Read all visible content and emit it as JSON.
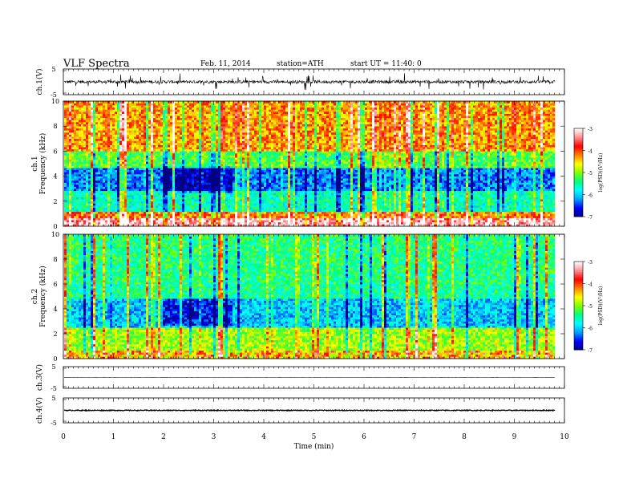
{
  "header": {
    "title": "VLF  Spectra",
    "date": "Feb. 11, 2014",
    "station": "station=ATH",
    "start_ut": "start  UT  =   11:40: 0"
  },
  "colors": {
    "colorbar": [
      "#000080",
      "#0000ff",
      "#00a0ff",
      "#00ffff",
      "#00ff80",
      "#80ff00",
      "#ffff00",
      "#ff8000",
      "#ff0000",
      "#ff9090",
      "#ffffff"
    ],
    "waveform": "#000000",
    "frame": "#000000"
  },
  "chart_data": [
    {
      "type": "line",
      "id": "ch1-waveform",
      "ylabel": "ch.1(V)",
      "ylim": [
        -5,
        5
      ],
      "yticks": [
        "5",
        "-5"
      ],
      "xlim": [
        0,
        10
      ],
      "description_level": "noisy trace around 0 V with frequent spikes",
      "baseline": 0,
      "amplitude": 1.2
    },
    {
      "type": "heatmap",
      "id": "ch1-spectrogram",
      "channel": "ch.1",
      "ylabel": "Frequency  (kHz)",
      "ylim": [
        0,
        10
      ],
      "yticks": [
        "0",
        "2",
        "4",
        "6",
        "8",
        "10"
      ],
      "xlim": [
        0,
        9.8
      ],
      "colorbar": {
        "label": "log(PSD)(V²/Hz)",
        "range": [
          -7,
          -3
        ],
        "ticks": [
          "-3",
          "-4",
          "-5",
          "-6",
          "-7"
        ]
      },
      "bands": [
        {
          "from_khz": 0,
          "to_khz": 0.6,
          "logpsd": -3.3
        },
        {
          "from_khz": 0.6,
          "to_khz": 1.2,
          "logpsd": -4.2
        },
        {
          "from_khz": 1.2,
          "to_khz": 2.8,
          "logpsd": -5.6
        },
        {
          "from_khz": 2.8,
          "to_khz": 4.6,
          "logpsd": -6.3
        },
        {
          "from_khz": 4.6,
          "to_khz": 6.0,
          "logpsd": -5.2
        },
        {
          "from_khz": 6.0,
          "to_khz": 10,
          "logpsd": -4.3
        }
      ]
    },
    {
      "type": "heatmap",
      "id": "ch2-spectrogram",
      "channel": "ch.2",
      "ylabel": "Frequency  (kHz)",
      "ylim": [
        0,
        10
      ],
      "yticks": [
        "0",
        "2",
        "4",
        "6",
        "8",
        "10"
      ],
      "xlim": [
        0,
        9.8
      ],
      "colorbar": {
        "label": "log(PSD)(V²/Hz)",
        "range": [
          -7,
          -3
        ],
        "ticks": [
          "-3",
          "-4",
          "-5",
          "-6",
          "-7"
        ]
      },
      "bands": [
        {
          "from_khz": 0,
          "to_khz": 0.6,
          "logpsd": -4.6
        },
        {
          "from_khz": 0.6,
          "to_khz": 2.5,
          "logpsd": -4.9
        },
        {
          "from_khz": 2.5,
          "to_khz": 4.8,
          "logpsd": -6.0
        },
        {
          "from_khz": 4.8,
          "to_khz": 6.0,
          "logpsd": -5.5
        },
        {
          "from_khz": 6.0,
          "to_khz": 10,
          "logpsd": -5.4
        }
      ]
    },
    {
      "type": "line",
      "id": "ch3-waveform",
      "ylabel": "ch.3(V)",
      "ylim": [
        -5,
        5
      ],
      "yticks": [
        "5",
        "-5"
      ],
      "xlim": [
        0,
        9.8
      ],
      "baseline": 0,
      "amplitude": 0.05
    },
    {
      "type": "line",
      "id": "ch4-waveform",
      "ylabel": "ch.4(V)",
      "ylim": [
        -5,
        5
      ],
      "yticks": [
        "5",
        "-5"
      ],
      "xlim": [
        0,
        9.8
      ],
      "baseline": 0,
      "amplitude": 0.35
    }
  ],
  "x_axis": {
    "label": "Time  (min)",
    "range": [
      0,
      10
    ],
    "ticks": [
      "0",
      "1",
      "2",
      "3",
      "4",
      "5",
      "6",
      "7",
      "8",
      "9",
      "10"
    ]
  }
}
